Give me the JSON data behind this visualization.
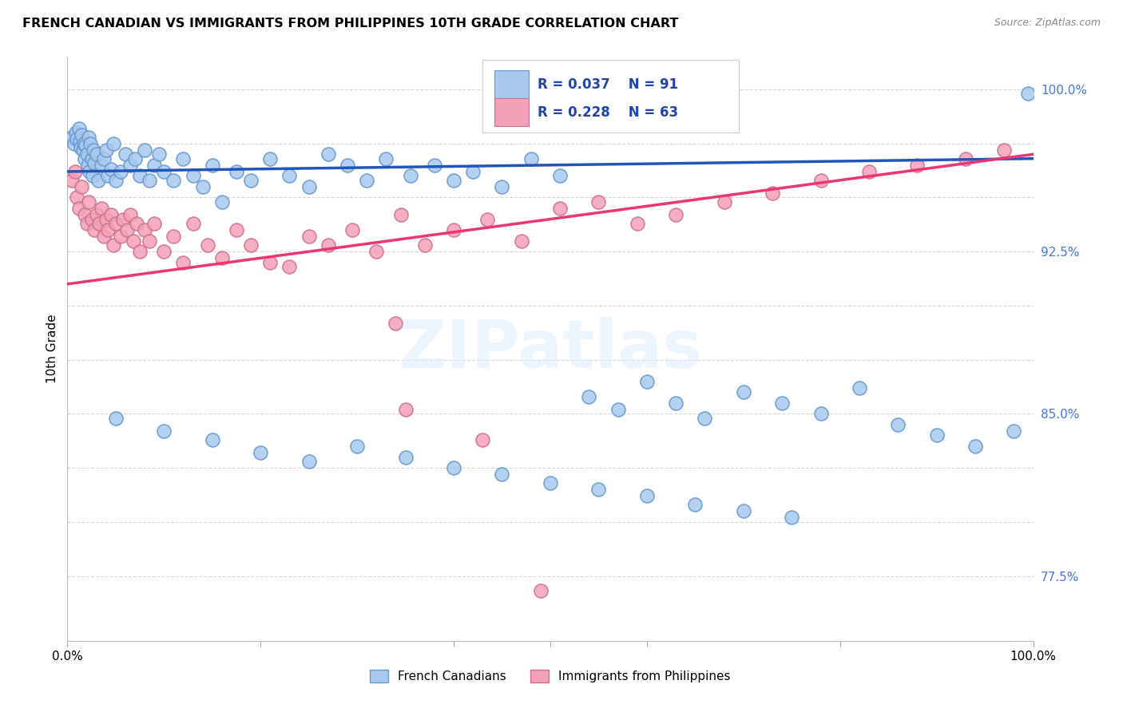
{
  "title": "FRENCH CANADIAN VS IMMIGRANTS FROM PHILIPPINES 10TH GRADE CORRELATION CHART",
  "source": "Source: ZipAtlas.com",
  "ylabel": "10th Grade",
  "y_tick_positions": [
    0.775,
    0.8,
    0.825,
    0.85,
    0.875,
    0.9,
    0.925,
    0.95,
    0.975,
    1.0
  ],
  "y_tick_labels": [
    "77.5%",
    "",
    "",
    "85.0%",
    "",
    "",
    "92.5%",
    "",
    "",
    "100.0%"
  ],
  "x_range": [
    0.0,
    1.0
  ],
  "y_range": [
    0.745,
    1.015
  ],
  "legend_blue_r": "R = 0.037",
  "legend_blue_n": "N = 91",
  "legend_pink_r": "R = 0.228",
  "legend_pink_n": "N = 63",
  "legend_label_blue": "French Canadians",
  "legend_label_pink": "Immigrants from Philippines",
  "blue_color": "#A8C8EE",
  "blue_edge_color": "#6699CC",
  "pink_color": "#F4A0B8",
  "pink_edge_color": "#CC7090",
  "line_blue_color": "#2255BB",
  "line_pink_color": "#EE3377",
  "blue_line_x": [
    0.0,
    1.0
  ],
  "blue_line_y": [
    0.962,
    0.968
  ],
  "pink_line_x": [
    0.0,
    1.0
  ],
  "pink_line_y": [
    0.91,
    0.97
  ],
  "blue_scatter_x": [
    0.005,
    0.007,
    0.009,
    0.01,
    0.012,
    0.013,
    0.014,
    0.015,
    0.016,
    0.017,
    0.018,
    0.019,
    0.02,
    0.021,
    0.022,
    0.023,
    0.024,
    0.025,
    0.026,
    0.027,
    0.028,
    0.03,
    0.032,
    0.035,
    0.038,
    0.04,
    0.042,
    0.045,
    0.048,
    0.05,
    0.055,
    0.06,
    0.065,
    0.07,
    0.075,
    0.08,
    0.085,
    0.09,
    0.095,
    0.1,
    0.11,
    0.12,
    0.13,
    0.14,
    0.15,
    0.16,
    0.175,
    0.19,
    0.21,
    0.23,
    0.25,
    0.27,
    0.29,
    0.31,
    0.33,
    0.355,
    0.38,
    0.4,
    0.42,
    0.45,
    0.48,
    0.51,
    0.54,
    0.57,
    0.6,
    0.63,
    0.66,
    0.7,
    0.74,
    0.78,
    0.82,
    0.86,
    0.9,
    0.94,
    0.98,
    0.05,
    0.1,
    0.15,
    0.2,
    0.25,
    0.3,
    0.35,
    0.4,
    0.45,
    0.5,
    0.55,
    0.6,
    0.65,
    0.7,
    0.75,
    0.995
  ],
  "blue_scatter_y": [
    0.978,
    0.975,
    0.98,
    0.977,
    0.982,
    0.976,
    0.973,
    0.979,
    0.972,
    0.975,
    0.968,
    0.974,
    0.97,
    0.965,
    0.978,
    0.962,
    0.975,
    0.968,
    0.96,
    0.972,
    0.966,
    0.97,
    0.958,
    0.965,
    0.968,
    0.972,
    0.96,
    0.963,
    0.975,
    0.958,
    0.962,
    0.97,
    0.965,
    0.968,
    0.96,
    0.972,
    0.958,
    0.965,
    0.97,
    0.962,
    0.958,
    0.968,
    0.96,
    0.955,
    0.965,
    0.948,
    0.962,
    0.958,
    0.968,
    0.96,
    0.955,
    0.97,
    0.965,
    0.958,
    0.968,
    0.96,
    0.965,
    0.958,
    0.962,
    0.955,
    0.968,
    0.96,
    0.858,
    0.852,
    0.865,
    0.855,
    0.848,
    0.86,
    0.855,
    0.85,
    0.862,
    0.845,
    0.84,
    0.835,
    0.842,
    0.848,
    0.842,
    0.838,
    0.832,
    0.828,
    0.835,
    0.83,
    0.825,
    0.822,
    0.818,
    0.815,
    0.812,
    0.808,
    0.805,
    0.802,
    0.998
  ],
  "pink_scatter_x": [
    0.005,
    0.008,
    0.01,
    0.012,
    0.015,
    0.018,
    0.02,
    0.022,
    0.025,
    0.028,
    0.03,
    0.033,
    0.035,
    0.038,
    0.04,
    0.042,
    0.045,
    0.048,
    0.05,
    0.055,
    0.058,
    0.062,
    0.065,
    0.068,
    0.072,
    0.075,
    0.08,
    0.085,
    0.09,
    0.1,
    0.11,
    0.12,
    0.13,
    0.145,
    0.16,
    0.175,
    0.19,
    0.21,
    0.23,
    0.25,
    0.27,
    0.295,
    0.32,
    0.345,
    0.37,
    0.4,
    0.435,
    0.47,
    0.51,
    0.55,
    0.59,
    0.63,
    0.68,
    0.73,
    0.78,
    0.83,
    0.88,
    0.93,
    0.97,
    0.34,
    0.35,
    0.43,
    0.49
  ],
  "pink_scatter_y": [
    0.958,
    0.962,
    0.95,
    0.945,
    0.955,
    0.942,
    0.938,
    0.948,
    0.94,
    0.935,
    0.942,
    0.938,
    0.945,
    0.932,
    0.94,
    0.935,
    0.942,
    0.928,
    0.938,
    0.932,
    0.94,
    0.935,
    0.942,
    0.93,
    0.938,
    0.925,
    0.935,
    0.93,
    0.938,
    0.925,
    0.932,
    0.92,
    0.938,
    0.928,
    0.922,
    0.935,
    0.928,
    0.92,
    0.918,
    0.932,
    0.928,
    0.935,
    0.925,
    0.942,
    0.928,
    0.935,
    0.94,
    0.93,
    0.945,
    0.948,
    0.938,
    0.942,
    0.948,
    0.952,
    0.958,
    0.962,
    0.965,
    0.968,
    0.972,
    0.892,
    0.852,
    0.838,
    0.768
  ]
}
